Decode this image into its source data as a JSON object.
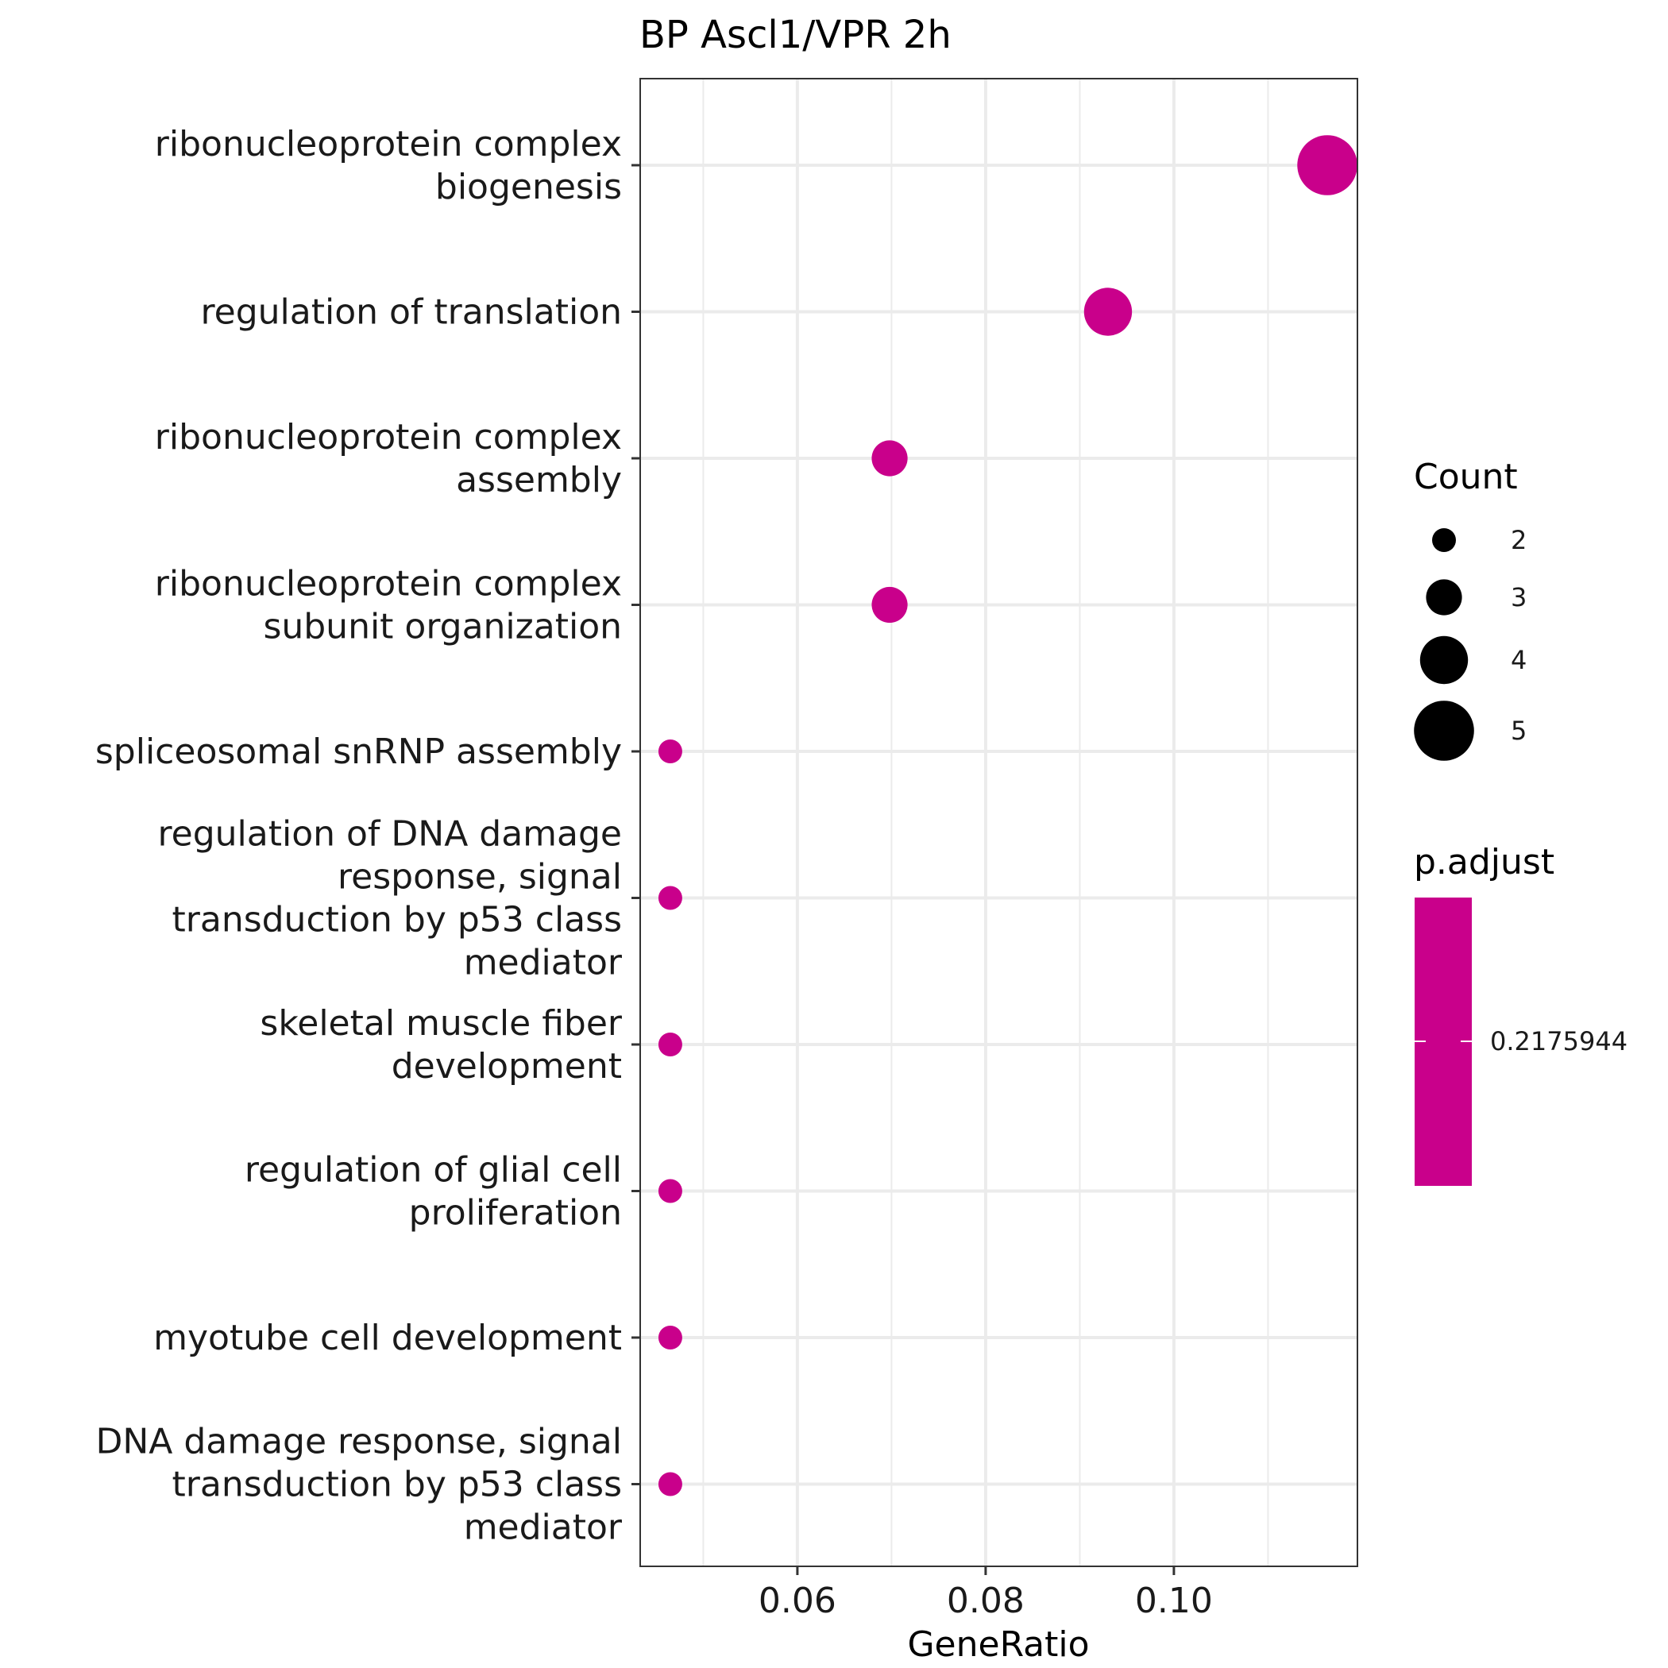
{
  "chart_data": {
    "type": "scatter",
    "title": "BP Ascl1/VPR 2h",
    "xlabel": "GeneRatio",
    "ylabel": "",
    "xlim": [
      0.0433,
      0.1195
    ],
    "x_ticks": [
      "0.06",
      "0.08",
      "0.10"
    ],
    "x_tick_values": [
      0.06,
      0.08,
      0.1
    ],
    "x_minor_ticks": [
      0.05,
      0.07,
      0.09,
      0.11
    ],
    "grid": true,
    "point_color": "#C9008B",
    "categories": [
      [
        "ribonucleoprotein complex",
        "biogenesis"
      ],
      [
        "regulation of translation"
      ],
      [
        "ribonucleoprotein complex",
        "assembly"
      ],
      [
        "ribonucleoprotein complex",
        "subunit organization"
      ],
      [
        "spliceosomal snRNP assembly"
      ],
      [
        "regulation of DNA damage",
        "response, signal",
        "transduction by p53 class",
        "mediator"
      ],
      [
        "skeletal muscle fiber",
        "development"
      ],
      [
        "regulation of glial cell",
        "proliferation"
      ],
      [
        "myotube cell development"
      ],
      [
        "DNA damage response, signal",
        "transduction by p53 class",
        "mediator"
      ]
    ],
    "points": [
      {
        "x": 0.1163,
        "count": 5,
        "p_adjust": 0.2175944
      },
      {
        "x": 0.093,
        "count": 4,
        "p_adjust": 0.2175944
      },
      {
        "x": 0.0698,
        "count": 3,
        "p_adjust": 0.2175944
      },
      {
        "x": 0.0698,
        "count": 3,
        "p_adjust": 0.2175944
      },
      {
        "x": 0.0465,
        "count": 2,
        "p_adjust": 0.2175944
      },
      {
        "x": 0.0465,
        "count": 2,
        "p_adjust": 0.2175944
      },
      {
        "x": 0.0465,
        "count": 2,
        "p_adjust": 0.2175944
      },
      {
        "x": 0.0465,
        "count": 2,
        "p_adjust": 0.2175944
      },
      {
        "x": 0.0465,
        "count": 2,
        "p_adjust": 0.2175944
      },
      {
        "x": 0.0465,
        "count": 2,
        "p_adjust": 0.2175944
      }
    ],
    "legend": {
      "placement": "right",
      "size_title": "Count",
      "size_entries": [
        {
          "label": "2",
          "count": 2
        },
        {
          "label": "3",
          "count": 3
        },
        {
          "label": "4",
          "count": 4
        },
        {
          "label": "5",
          "count": 5
        }
      ],
      "color_title": "p.adjust",
      "color_label": "0.2175944",
      "color": "#C9008B"
    }
  }
}
